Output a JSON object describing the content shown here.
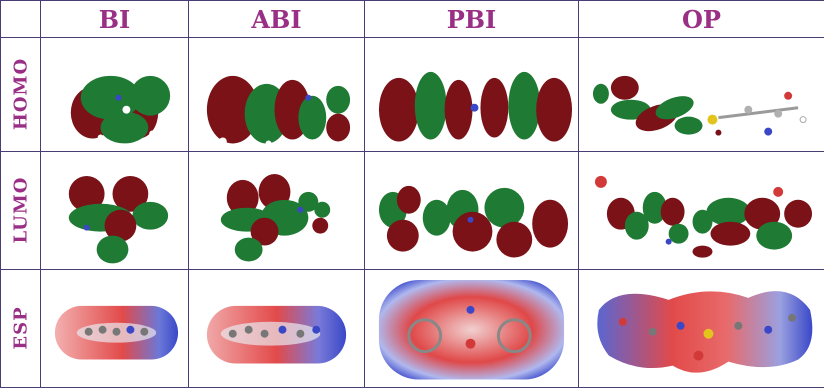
{
  "columns": [
    "BI",
    "ABI",
    "PBI",
    "OP"
  ],
  "rows": [
    "HOMO",
    "LUMO",
    "ESP"
  ],
  "colors": {
    "label_color": "#9a2f86",
    "grid_color": "#4a3c74",
    "orbital_positive": "#7a1218",
    "orbital_negative": "#1f7a34",
    "esp_red": "#e23a3a",
    "esp_blue": "#3a48c8"
  }
}
